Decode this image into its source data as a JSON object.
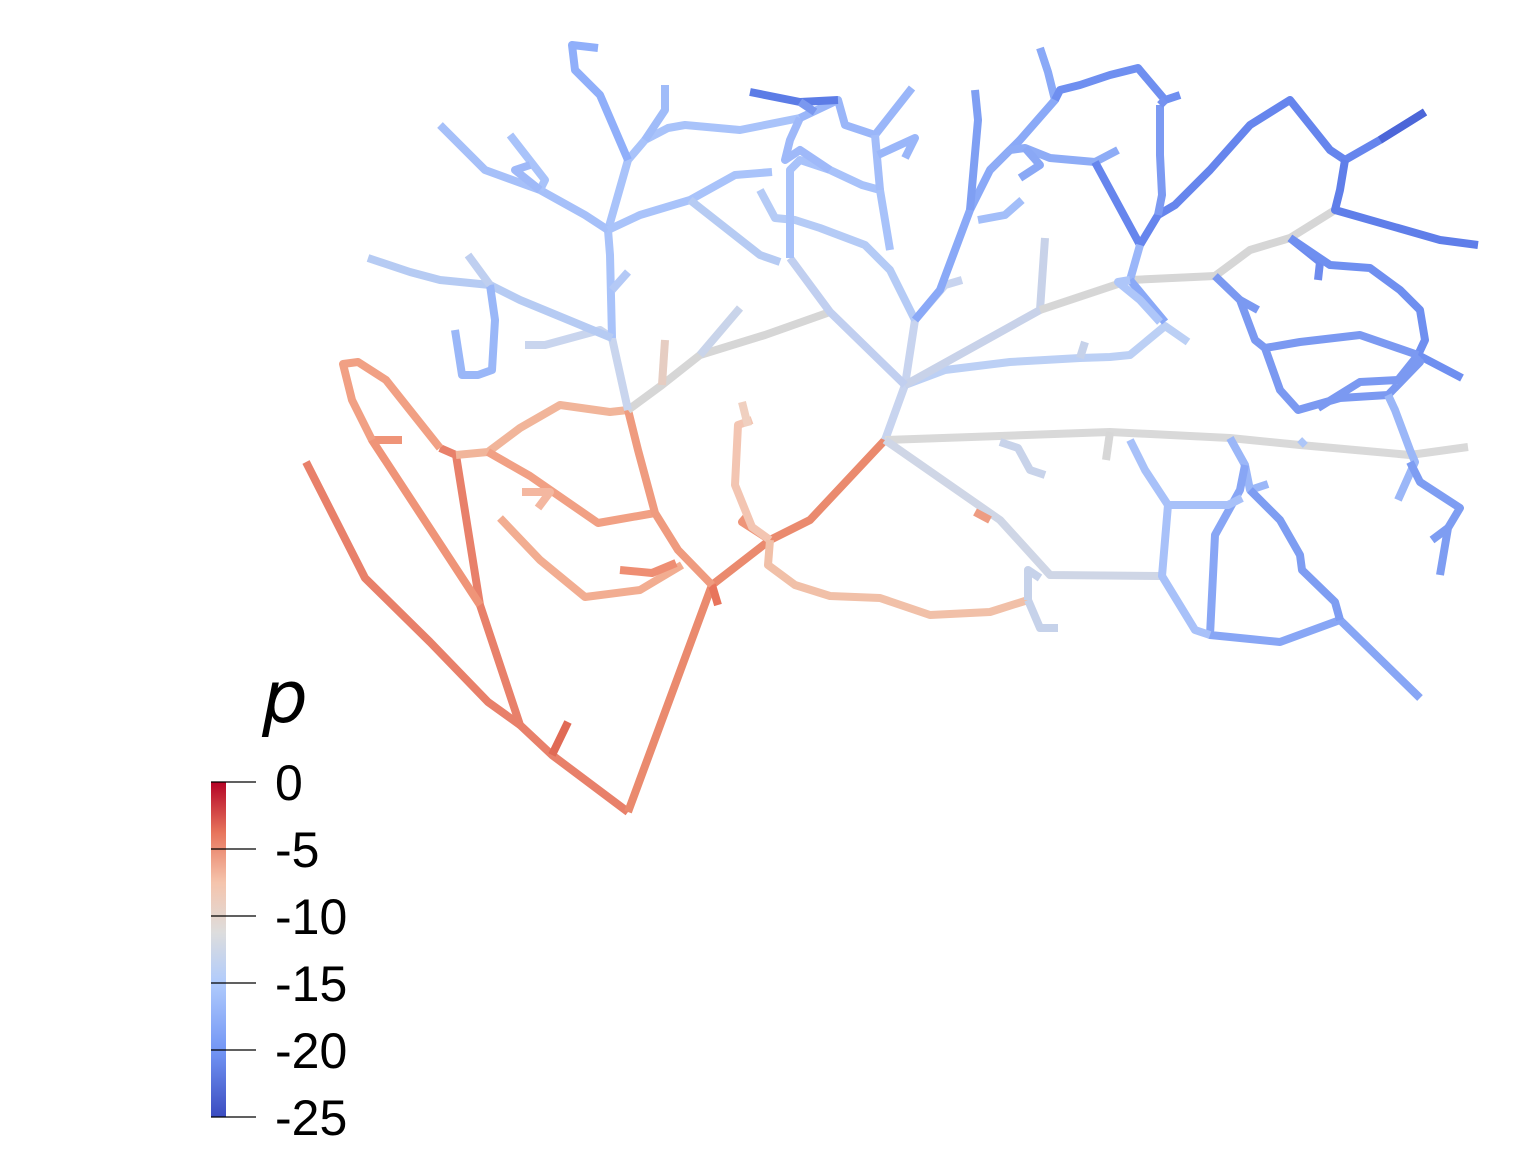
{
  "colorbar": {
    "title": "p",
    "ticks": [
      "0",
      "-5",
      "-10",
      "-15",
      "-20",
      "-25"
    ],
    "range": [
      -25,
      0
    ],
    "colormap": [
      "#3b4cc0",
      "#7396f5",
      "#b0cbfc",
      "#dddddd",
      "#f5c4ac",
      "#e7745b",
      "#b40426"
    ]
  }
}
